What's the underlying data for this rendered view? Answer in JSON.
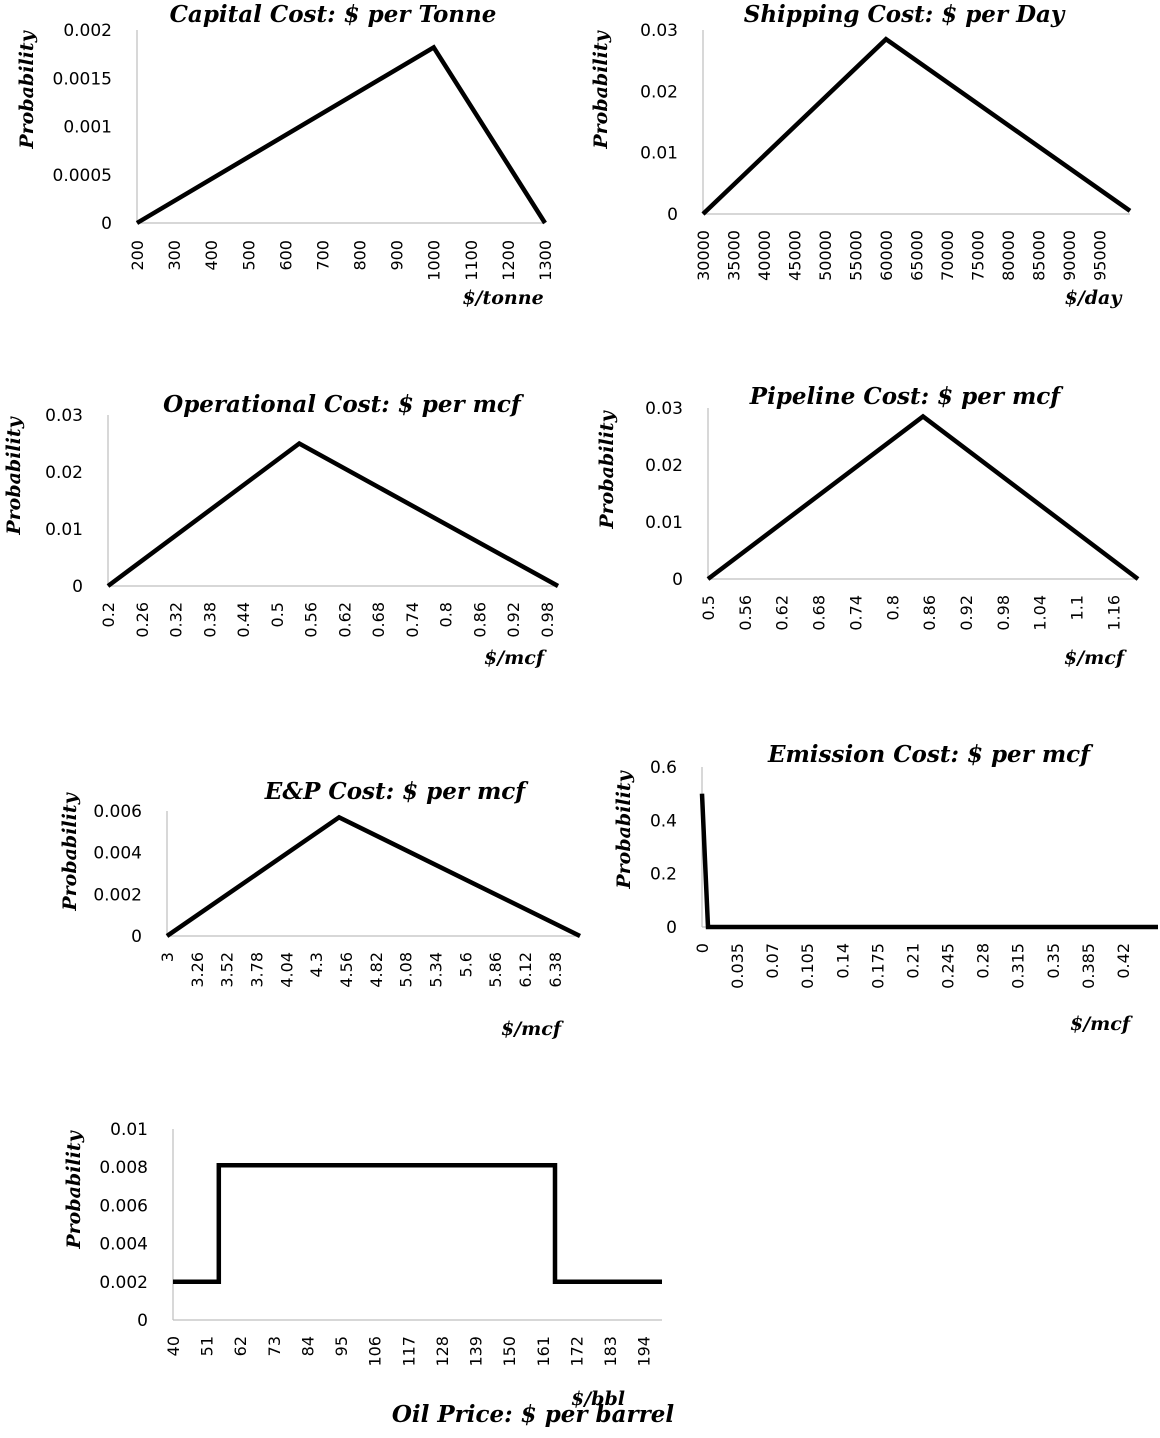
{
  "chart_data": [
    {
      "type": "line",
      "title": "Capital Cost: $ per Tonne",
      "xlabel": "$/tonne",
      "ylabel": "Probability",
      "categories": [
        "200",
        "300",
        "400",
        "500",
        "600",
        "700",
        "800",
        "900",
        "1000",
        "1100",
        "1200",
        "1300"
      ],
      "x": [
        200,
        1000,
        1300
      ],
      "y": [
        0,
        0.00182,
        0
      ],
      "xlim": [
        200,
        1300
      ],
      "ylim": [
        0,
        0.002
      ],
      "yticks": [
        "0",
        "0.0005",
        "0.001",
        "0.0015",
        "0.002"
      ],
      "grid": false,
      "legend": "none"
    },
    {
      "type": "line",
      "title": "Shipping Cost: $ per Day",
      "xlabel": "$/day",
      "ylabel": "Probability",
      "categories": [
        "30000",
        "35000",
        "40000",
        "45000",
        "50000",
        "55000",
        "60000",
        "65000",
        "70000",
        "75000",
        "80000",
        "85000",
        "90000",
        "95000"
      ],
      "x": [
        30000,
        60000,
        100000
      ],
      "y": [
        0,
        0.0285,
        0.0005
      ],
      "xlim": [
        30000,
        100000
      ],
      "ylim": [
        0,
        0.03
      ],
      "yticks": [
        "0",
        "0.01",
        "0.02",
        "0.03"
      ],
      "grid": false,
      "legend": "none"
    },
    {
      "type": "line",
      "title": "Operational Cost: $ per mcf",
      "xlabel": "$/mcf",
      "ylabel": "Probability",
      "categories": [
        "0.2",
        "0.26",
        "0.32",
        "0.38",
        "0.44",
        "0.5",
        "0.56",
        "0.62",
        "0.68",
        "0.74",
        "0.8",
        "0.86",
        "0.92",
        "0.98"
      ],
      "x": [
        0.2,
        0.54,
        1.0
      ],
      "y": [
        0,
        0.025,
        0
      ],
      "xlim": [
        0.2,
        1.0
      ],
      "ylim": [
        0,
        0.03
      ],
      "yticks": [
        "0",
        "0.01",
        "0.02",
        "0.03"
      ],
      "grid": false,
      "legend": "none"
    },
    {
      "type": "line",
      "title": "Pipeline Cost: $ per mcf",
      "xlabel": "$/mcf",
      "ylabel": "Probability",
      "categories": [
        "0.5",
        "0.56",
        "0.62",
        "0.68",
        "0.74",
        "0.8",
        "0.86",
        "0.92",
        "0.98",
        "1.04",
        "1.1",
        "1.16"
      ],
      "x": [
        0.5,
        0.85,
        1.2
      ],
      "y": [
        0,
        0.0285,
        0
      ],
      "xlim": [
        0.5,
        1.2
      ],
      "ylim": [
        0,
        0.03
      ],
      "yticks": [
        "0",
        "0.01",
        "0.02",
        "0.03"
      ],
      "grid": false,
      "legend": "none"
    },
    {
      "type": "line",
      "title": "E&P Cost: $ per mcf",
      "xlabel": "$/mcf",
      "ylabel": "Probability",
      "categories": [
        "3",
        "3.26",
        "3.52",
        "3.78",
        "4.04",
        "4.3",
        "4.56",
        "4.82",
        "5.08",
        "5.34",
        "5.6",
        "5.86",
        "6.12",
        "6.38"
      ],
      "x": [
        3.0,
        4.5,
        6.6
      ],
      "y": [
        0,
        0.0057,
        0
      ],
      "xlim": [
        3.0,
        6.6
      ],
      "ylim": [
        0,
        0.006
      ],
      "yticks": [
        "0",
        "0.002",
        "0.004",
        "0.006"
      ],
      "grid": false,
      "legend": "none"
    },
    {
      "type": "line",
      "title": "Emission Cost: $ per mcf",
      "xlabel": "$/mcf",
      "ylabel": "Probability",
      "categories": [
        "0",
        "0.035",
        "0.07",
        "0.105",
        "0.14",
        "0.175",
        "0.21",
        "0.245",
        "0.28",
        "0.315",
        "0.35",
        "0.385",
        "0.42"
      ],
      "x": [
        0,
        0.006,
        0.455
      ],
      "y": [
        0.5,
        0,
        0
      ],
      "xlim": [
        0,
        0.455
      ],
      "ylim": [
        0,
        0.6
      ],
      "yticks": [
        "0",
        "0.2",
        "0.4",
        "0.6"
      ],
      "grid": false,
      "legend": "none"
    },
    {
      "type": "line",
      "title": "Oil Price: $ per barrel",
      "xlabel": "$/bbl",
      "ylabel": "Probability",
      "categories": [
        "40",
        "51",
        "62",
        "73",
        "84",
        "95",
        "106",
        "117",
        "128",
        "139",
        "150",
        "161",
        "172",
        "183",
        "194"
      ],
      "x": [
        40,
        55,
        55,
        165,
        165,
        200
      ],
      "y": [
        0.002,
        0.002,
        0.0081,
        0.0081,
        0.002,
        0.002
      ],
      "xlim": [
        40,
        200
      ],
      "ylim": [
        0,
        0.01
      ],
      "yticks": [
        "0",
        "0.002",
        "0.004",
        "0.006",
        "0.008",
        "0.01"
      ],
      "grid": false,
      "legend": "none"
    }
  ]
}
